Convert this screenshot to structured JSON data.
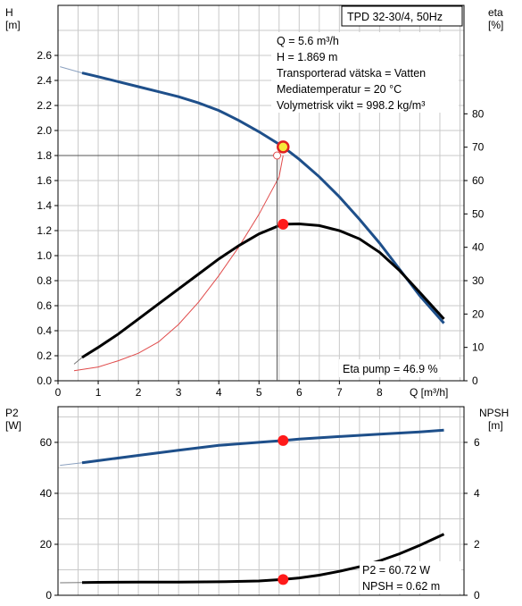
{
  "chart_data": [
    {
      "type": "line",
      "title": "TPD 32-30/4, 50Hz",
      "xlabel": "Q [m³/h]",
      "ylabel_left": "H\n[m]",
      "ylabel_right": "eta\n[%]",
      "x_ticks": [
        "0",
        "1",
        "2",
        "3",
        "4",
        "5",
        "6",
        "7",
        "8"
      ],
      "y_left_ticks": [
        "0.0",
        "0.2",
        "0.4",
        "0.6",
        "0.8",
        "1.0",
        "1.2",
        "1.4",
        "1.6",
        "1.8",
        "2.0",
        "2.2",
        "2.4",
        "2.6"
      ],
      "y_right_ticks": [
        "0",
        "10",
        "20",
        "30",
        "40",
        "50",
        "60",
        "70",
        "80"
      ],
      "xlim": [
        0,
        10.1
      ],
      "ylim_left": [
        0,
        3.0
      ],
      "ylim_right": [
        0,
        112.5
      ],
      "grid": true,
      "duty_point": {
        "q": 5.6,
        "h": 1.869,
        "eta": 46.9
      },
      "annotations": [
        "Q = 5.6 m³/h",
        "H = 1.869 m",
        "Transporterad vätska = Vatten",
        "Mediatemperatur = 20 °C",
        "Volymetrisk vikt = 998.2 kg/m³"
      ],
      "eta_label": "Eta pump = 46.9 %",
      "series": [
        {
          "axis": "left",
          "color": "#1e4f8a",
          "x": [
            0.6,
            1.0,
            1.5,
            2.0,
            2.5,
            3.0,
            3.5,
            4.0,
            4.5,
            5.0,
            5.5,
            5.6,
            6.0,
            6.5,
            7.0,
            7.5,
            8.0,
            8.5,
            9.0,
            9.6
          ],
          "y": [
            2.46,
            2.43,
            2.39,
            2.35,
            2.31,
            2.27,
            2.22,
            2.16,
            2.08,
            1.99,
            1.89,
            1.869,
            1.77,
            1.63,
            1.47,
            1.29,
            1.1,
            0.89,
            0.68,
            0.46
          ]
        },
        {
          "axis": "right",
          "color": "#000000",
          "x": [
            0.6,
            1.0,
            1.5,
            2.0,
            2.5,
            3.0,
            3.5,
            4.0,
            4.5,
            5.0,
            5.5,
            5.6,
            6.0,
            6.5,
            7.0,
            7.5,
            8.0,
            8.5,
            9.0,
            9.6
          ],
          "y": [
            7.0,
            10.0,
            14.0,
            18.5,
            23.0,
            27.5,
            32.0,
            36.5,
            40.5,
            44.0,
            46.5,
            46.9,
            47.0,
            46.5,
            45.0,
            42.5,
            38.5,
            33.0,
            26.5,
            18.5
          ]
        },
        {
          "axis": "left",
          "color": "#e04b4b",
          "x": [
            0.4,
            1.0,
            1.5,
            2.0,
            2.5,
            3.0,
            3.5,
            4.0,
            4.5,
            5.0,
            5.5,
            5.6
          ],
          "y": [
            0.08,
            0.11,
            0.16,
            0.22,
            0.31,
            0.45,
            0.63,
            0.84,
            1.07,
            1.33,
            1.63,
            1.8
          ]
        }
      ]
    },
    {
      "type": "line",
      "xlabel": "",
      "ylabel_left": "P2\n[W]",
      "ylabel_right": "NPSH\n[m]",
      "x_ticks": [],
      "y_left_ticks": [
        "0",
        "20",
        "40",
        "60"
      ],
      "y_right_ticks": [
        "0",
        "2",
        "4",
        "6"
      ],
      "xlim": [
        0,
        10.1
      ],
      "ylim_left": [
        0,
        74
      ],
      "ylim_right": [
        0,
        7.4
      ],
      "grid": true,
      "duty_point": {
        "q": 5.6,
        "p2": 60.72,
        "npsh": 0.62
      },
      "p2_label": "P2 = 60.72 W",
      "npsh_label": "NPSH = 0.62 m",
      "series": [
        {
          "axis": "left",
          "color": "#1e4f8a",
          "x": [
            0.6,
            1.0,
            2.0,
            3.0,
            4.0,
            5.0,
            5.6,
            6.0,
            7.0,
            8.0,
            9.0,
            9.6
          ],
          "y": [
            52.0,
            52.8,
            54.9,
            56.9,
            58.8,
            60.0,
            60.72,
            61.3,
            62.3,
            63.2,
            64.1,
            64.8
          ]
        },
        {
          "axis": "right",
          "color": "#000000",
          "x": [
            0.6,
            1.0,
            2.0,
            3.0,
            4.0,
            5.0,
            5.6,
            6.0,
            6.5,
            7.0,
            7.5,
            8.0,
            8.5,
            9.0,
            9.6
          ],
          "y": [
            0.5,
            0.51,
            0.52,
            0.52,
            0.53,
            0.56,
            0.62,
            0.68,
            0.79,
            0.94,
            1.12,
            1.35,
            1.63,
            1.96,
            2.4
          ]
        }
      ]
    }
  ]
}
